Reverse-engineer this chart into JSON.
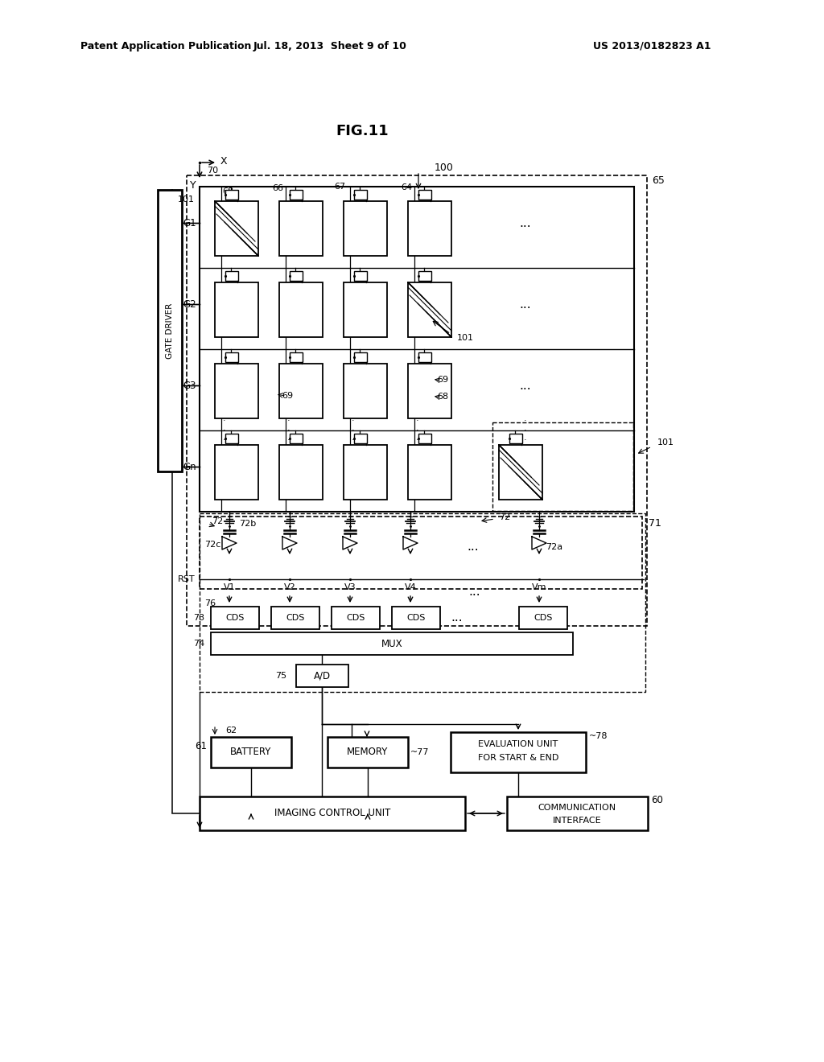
{
  "header_left": "Patent Application Publication",
  "header_center": "Jul. 18, 2013  Sheet 9 of 10",
  "header_right": "US 2013/0182823 A1",
  "fig_title": "FIG.11"
}
